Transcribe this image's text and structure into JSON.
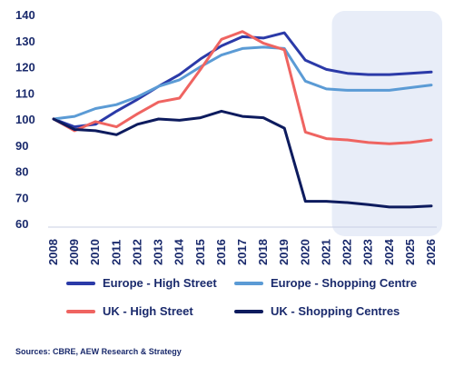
{
  "chart_data": {
    "type": "line",
    "x": [
      "2008",
      "2009",
      "2010",
      "2011",
      "2012",
      "2013",
      "2014",
      "2015",
      "2016",
      "2017",
      "2018",
      "2019",
      "2020",
      "2021",
      "2022",
      "2023",
      "2024",
      "2025",
      "2026"
    ],
    "ylim": [
      60,
      140
    ],
    "yticks": [
      60,
      70,
      80,
      90,
      100,
      110,
      120,
      130,
      140
    ],
    "grid": false,
    "forecast_shading": {
      "from": "2022",
      "to": "2026",
      "color": "#e8edf8"
    },
    "legend_position": "bottom",
    "series": [
      {
        "name": "Europe - High Street",
        "color": "#2b3aa8",
        "width": 3,
        "values": [
          100,
          97,
          98,
          103,
          107.5,
          112.5,
          117,
          123,
          128,
          131.5,
          131,
          133,
          122.5,
          119,
          117.5,
          117,
          117,
          117.5,
          118
        ]
      },
      {
        "name": "Europe - Shopping Centre",
        "color": "#5b9bd5",
        "width": 3,
        "values": [
          100,
          101,
          104,
          105.5,
          108.5,
          112.5,
          115,
          120,
          124.5,
          127,
          127.5,
          127,
          114.5,
          111.5,
          111,
          111,
          111,
          112,
          113
        ]
      },
      {
        "name": "UK - High Street",
        "color": "#ef6461",
        "width": 3,
        "values": [
          100,
          95.5,
          99,
          97,
          102,
          106.5,
          108,
          119,
          130.5,
          133.5,
          129,
          126.5,
          95,
          92.5,
          92,
          91,
          90.5,
          91,
          92
        ]
      },
      {
        "name": "UK - Shopping Centres",
        "color": "#0d1b5e",
        "width": 3,
        "values": [
          100,
          96,
          95.5,
          94,
          98,
          100,
          99.5,
          100.5,
          103,
          101,
          100.5,
          96.5,
          68.5,
          68.5,
          68,
          67.2,
          66.3,
          66.3,
          66.7
        ]
      }
    ],
    "source": "Sources: CBRE, AEW Research & Strategy"
  }
}
